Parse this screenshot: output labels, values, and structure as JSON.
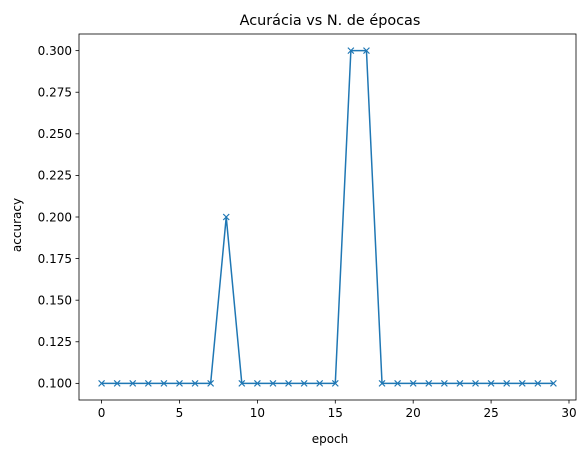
{
  "chart_data": {
    "type": "line",
    "title": "Acurácia vs N. de épocas",
    "xlabel": "epoch",
    "ylabel": "accuracy",
    "xlim": [
      -1.45,
      30.45
    ],
    "ylim": [
      0.09,
      0.31
    ],
    "xticks": [
      0,
      5,
      10,
      15,
      20,
      25,
      30
    ],
    "xtick_labels": [
      "0",
      "5",
      "10",
      "15",
      "20",
      "25",
      "30"
    ],
    "yticks": [
      0.1,
      0.125,
      0.15,
      0.175,
      0.2,
      0.225,
      0.25,
      0.275,
      0.3
    ],
    "ytick_labels": [
      "0.100",
      "0.125",
      "0.150",
      "0.175",
      "0.200",
      "0.225",
      "0.250",
      "0.275",
      "0.300"
    ],
    "grid": false,
    "marker": "x",
    "series": [
      {
        "color": "#1f77b4",
        "x": [
          0,
          1,
          2,
          3,
          4,
          5,
          6,
          7,
          8,
          9,
          10,
          11,
          12,
          13,
          14,
          15,
          16,
          17,
          18,
          19,
          20,
          21,
          22,
          23,
          24,
          25,
          26,
          27,
          28,
          29
        ],
        "values": [
          0.1,
          0.1,
          0.1,
          0.1,
          0.1,
          0.1,
          0.1,
          0.1,
          0.2,
          0.1,
          0.1,
          0.1,
          0.1,
          0.1,
          0.1,
          0.1,
          0.3,
          0.3,
          0.1,
          0.1,
          0.1,
          0.1,
          0.1,
          0.1,
          0.1,
          0.1,
          0.1,
          0.1,
          0.1,
          0.1
        ]
      }
    ]
  }
}
